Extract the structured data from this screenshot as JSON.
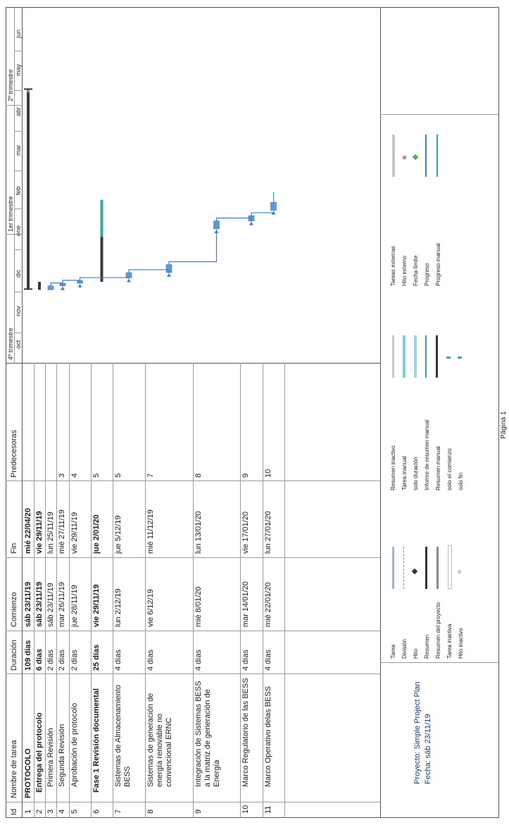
{
  "table": {
    "headers": {
      "id": "Id",
      "name": "Nombre de tarea",
      "duration": "Duración",
      "start": "Comienzo",
      "end": "Fin",
      "predecessors": "Predecesoras"
    },
    "rows": [
      {
        "id": "1",
        "name": "PROTOCOLO",
        "duration": "109 días",
        "start": "sáb 23/11/19",
        "end": "mié 22/04/20",
        "pred": "",
        "bold": true,
        "indent": 0
      },
      {
        "id": "2",
        "name": "Entrega del protocolo",
        "duration": "6 días",
        "start": "sáb 23/11/19",
        "end": "vie 29/11/19",
        "pred": "",
        "bold": true,
        "indent": 1
      },
      {
        "id": "3",
        "name": "Primera Revisión",
        "duration": "2 días",
        "start": "sáb 23/11/19",
        "end": "lun 25/11/19",
        "pred": "",
        "bold": false,
        "indent": 2
      },
      {
        "id": "4",
        "name": "Segunda Revisión",
        "duration": "2 días",
        "start": "mar 26/11/19",
        "end": "mié 27/11/19",
        "pred": "3",
        "bold": false,
        "indent": 2
      },
      {
        "id": "5",
        "name": "Aprobación de protocolo",
        "duration": "2 días",
        "start": "jue 28/11/19",
        "end": "vie 29/11/19",
        "pred": "4",
        "bold": false,
        "indent": 2
      },
      {
        "id": "6",
        "name": "Fase 1 Revisión documental",
        "duration": "25 días",
        "start": "vie 29/11/19",
        "end": "jue 2/01/20",
        "pred": "5",
        "bold": true,
        "indent": 1
      },
      {
        "id": "7",
        "name": "Sistemas de Almacenamiento BESS",
        "duration": "4 días",
        "start": "lun 2/12/19",
        "end": "jue 5/12/19",
        "pred": "5",
        "bold": false,
        "indent": 2
      },
      {
        "id": "8",
        "name": "Sistemas de generación de energía renovable no convencional ERNC",
        "duration": "4 días",
        "start": "vie 6/12/19",
        "end": "mié 11/12/19",
        "pred": "7",
        "bold": false,
        "indent": 2
      },
      {
        "id": "9",
        "name": "Integración de Sistemas BESS a la matriz de generación de Energía",
        "duration": "4 días",
        "start": "mié 8/01/20",
        "end": "lun 13/01/20",
        "pred": "8",
        "bold": false,
        "indent": 2
      },
      {
        "id": "10",
        "name": "Marco Regulatorio de las BESS",
        "duration": "4 días",
        "start": "mar 14/01/20",
        "end": "vie 17/01/20",
        "pred": "9",
        "bold": false,
        "indent": 2
      },
      {
        "id": "11",
        "name": "Marco Operativo delas BESS",
        "duration": "4 días",
        "start": "mié 22/01/20",
        "end": "lun 27/01/20",
        "pred": "10",
        "bold": false,
        "indent": 2
      }
    ]
  },
  "timeline": {
    "quarters": [
      "4º trimestre",
      "1er trimestre",
      "2º trimestre"
    ],
    "months": [
      "oct",
      "nov",
      "dic",
      "ene",
      "feb",
      "mar",
      "abr",
      "may",
      "jun"
    ]
  },
  "footer": {
    "project_line": "Proyecto: Simple Project Plan",
    "date_line": "Fecha: sáb 23/11/19",
    "page_label": "Página 1"
  },
  "legend": {
    "col1": [
      "Tarea",
      "División",
      "Hito",
      "Resumen",
      "Resumen del proyecto",
      "Tarea inactiva",
      "Hito inactivo"
    ],
    "col2": [
      "Resumen inactivo",
      "Tarea manual",
      "solo duración",
      "Informe de resumen manual",
      "Resumen manual",
      "solo el comienzo",
      "solo fin"
    ],
    "col3": [
      "Tareas externas",
      "Hito externo",
      "Fecha límite",
      "Progreso",
      "Progreso manual"
    ]
  },
  "colors": {
    "task_blue": "#5b9bd5",
    "summary_dark": "#3a3a3a",
    "progress_teal": "#3aa8a8",
    "link_blue": "#3b7dd8",
    "header_text": "#1a3b6e"
  }
}
